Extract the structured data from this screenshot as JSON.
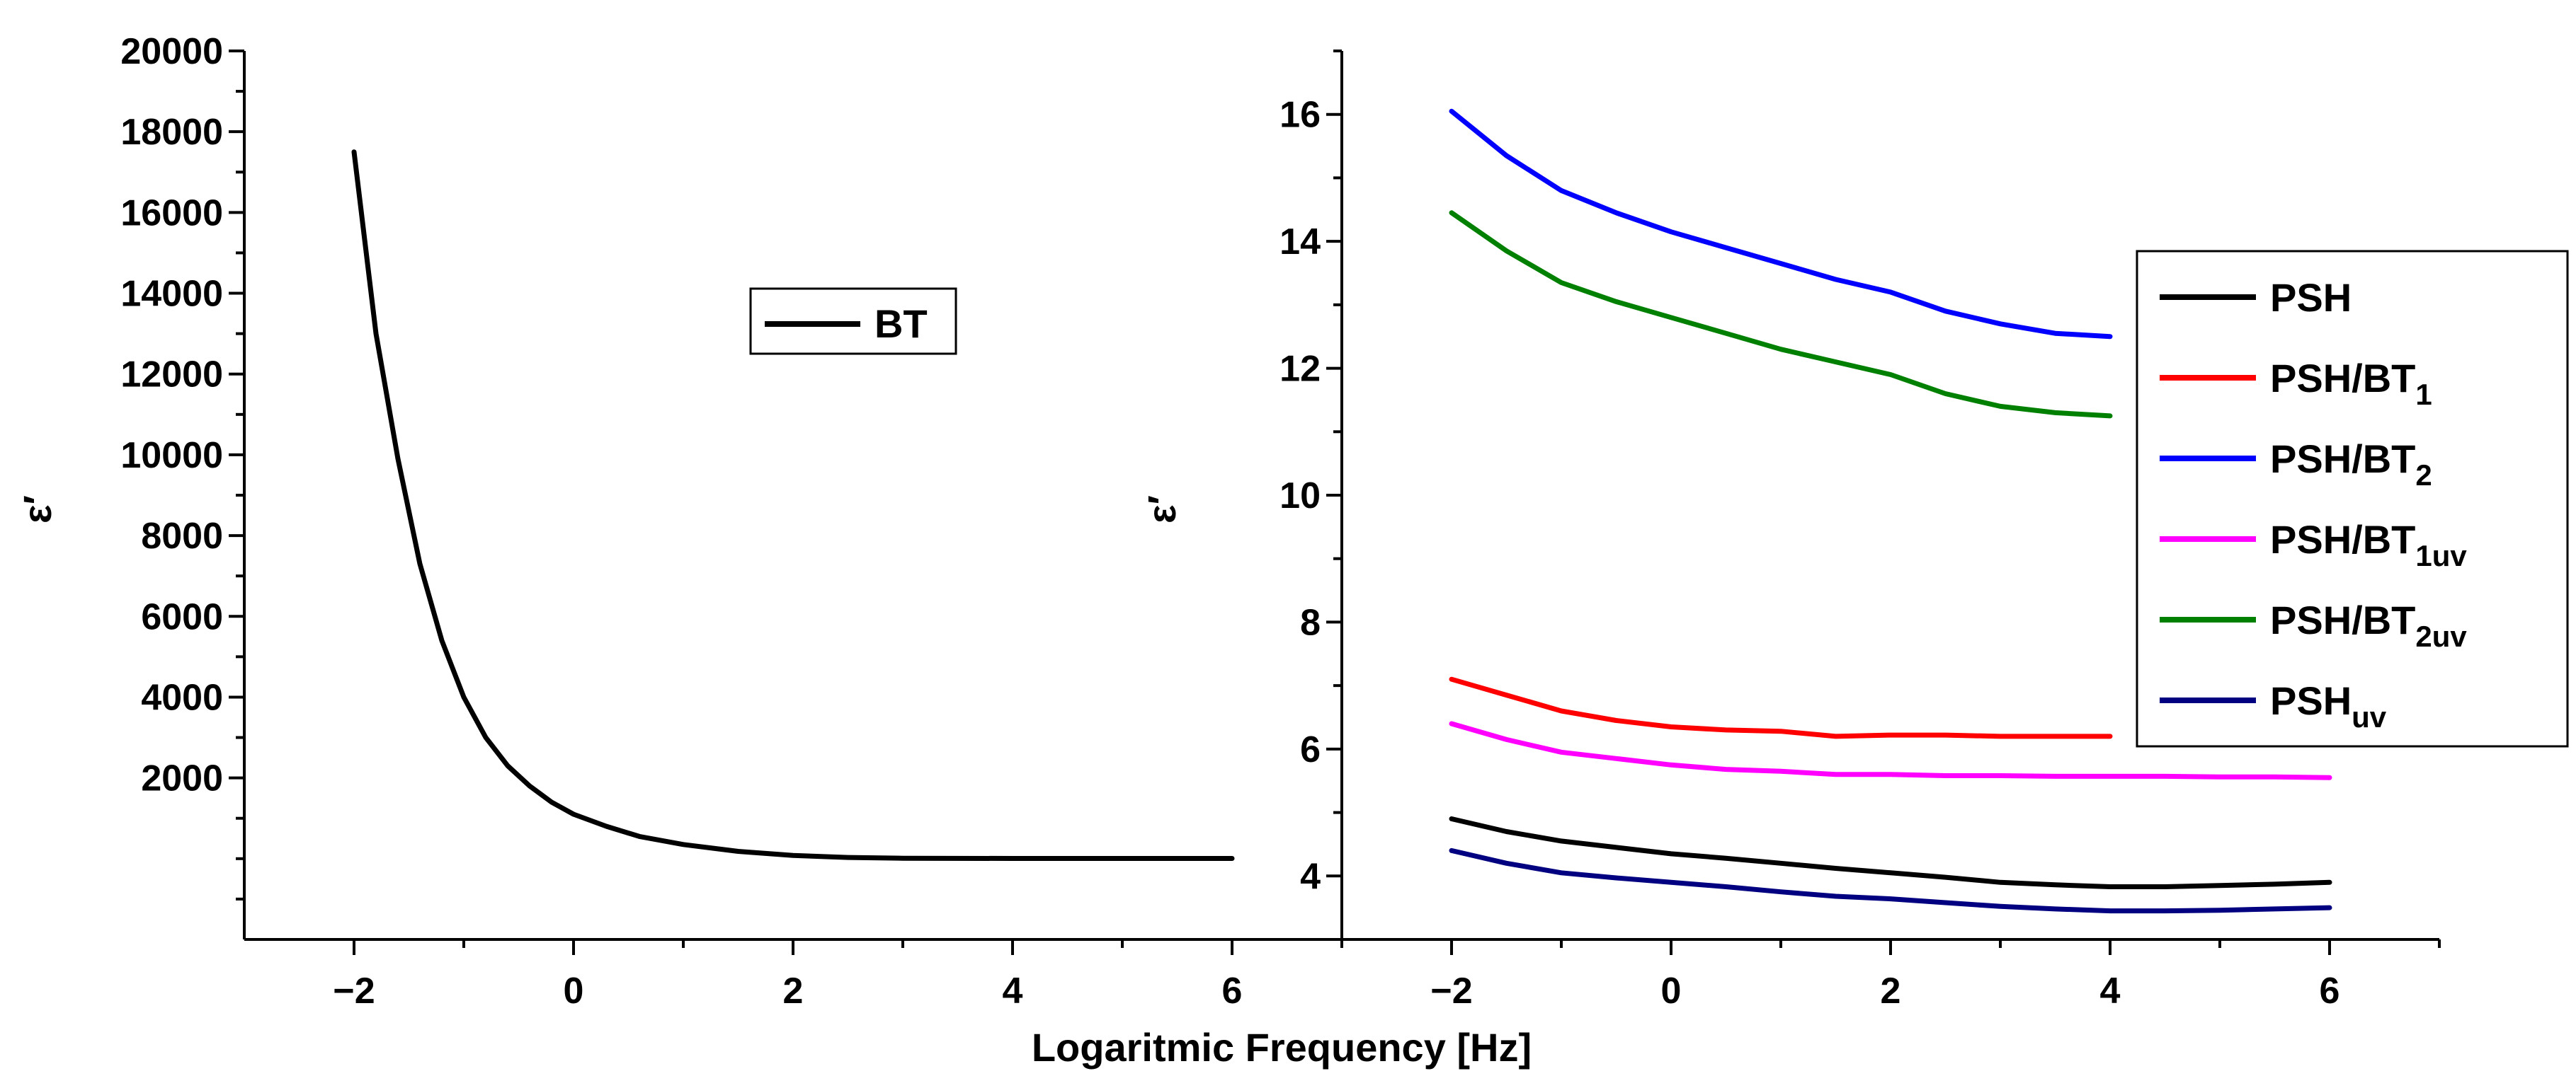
{
  "xlabel": "Logaritmic Frequency [Hz]",
  "chart_data": [
    {
      "type": "line",
      "title": "",
      "xlabel": "Logaritmic Frequency [Hz]",
      "ylabel": "ε′",
      "xlim": [
        -3,
        7
      ],
      "ylim": [
        -2000,
        20000
      ],
      "xticks": [
        -2,
        0,
        2,
        4,
        6
      ],
      "yticks": [
        2000,
        4000,
        6000,
        8000,
        10000,
        12000,
        14000,
        16000,
        18000,
        20000
      ],
      "legend": {
        "position": "center",
        "entries": [
          "BT"
        ]
      },
      "series": [
        {
          "name": "BT",
          "color": "#000000",
          "x": [
            -2,
            -1.8,
            -1.6,
            -1.4,
            -1.2,
            -1,
            -0.8,
            -0.6,
            -0.4,
            -0.2,
            0,
            0.3,
            0.6,
            1,
            1.5,
            2,
            2.5,
            3,
            4,
            5,
            6
          ],
          "y": [
            17500,
            13000,
            9900,
            7300,
            5400,
            4000,
            3000,
            2300,
            1800,
            1400,
            1100,
            800,
            550,
            350,
            180,
            80,
            30,
            10,
            5,
            5,
            5
          ]
        }
      ]
    },
    {
      "type": "line",
      "title": "",
      "xlabel": "Logaritmic Frequency [Hz]",
      "ylabel": "ε′",
      "xlim": [
        -3,
        7
      ],
      "ylim": [
        3,
        17
      ],
      "xticks": [
        -2,
        0,
        2,
        4,
        6
      ],
      "yticks": [
        4,
        6,
        8,
        10,
        12,
        14,
        16
      ],
      "legend": {
        "position": "right",
        "entries": [
          "PSH",
          "PSH/BT1",
          "PSH/BT2",
          "PSH/BT1uv",
          "PSH/BT2uv",
          "PSHuv"
        ]
      },
      "series": [
        {
          "name": "PSH",
          "main": "PSH",
          "sub": "",
          "color": "#000000",
          "x": [
            -2,
            -1.5,
            -1,
            -0.5,
            0,
            0.5,
            1,
            1.5,
            2,
            2.5,
            3,
            3.5,
            4,
            4.5,
            5,
            5.5,
            6
          ],
          "y": [
            4.9,
            4.7,
            4.55,
            4.45,
            4.35,
            4.28,
            4.2,
            4.12,
            4.05,
            3.98,
            3.9,
            3.86,
            3.83,
            3.83,
            3.85,
            3.87,
            3.9
          ]
        },
        {
          "name": "PSH/BT1",
          "main": "PSH/BT",
          "sub": "1",
          "color": "#ff0000",
          "x": [
            -2,
            -1.5,
            -1,
            -0.5,
            0,
            0.5,
            1,
            1.5,
            2,
            2.5,
            3,
            3.5,
            4
          ],
          "y": [
            7.1,
            6.85,
            6.6,
            6.45,
            6.35,
            6.3,
            6.28,
            6.2,
            6.22,
            6.22,
            6.2,
            6.2,
            6.2
          ]
        },
        {
          "name": "PSH/BT2",
          "main": "PSH/BT",
          "sub": "2",
          "color": "#0000ff",
          "x": [
            -2,
            -1.5,
            -1,
            -0.5,
            0,
            0.5,
            1,
            1.5,
            2,
            2.5,
            3,
            3.5,
            4
          ],
          "y": [
            16.05,
            15.35,
            14.8,
            14.45,
            14.15,
            13.9,
            13.65,
            13.4,
            13.2,
            12.9,
            12.7,
            12.55,
            12.5
          ]
        },
        {
          "name": "PSH/BT1uv",
          "main": "PSH/BT",
          "sub": "1uv",
          "color": "#ff00ff",
          "x": [
            -2,
            -1.5,
            -1,
            -0.5,
            0,
            0.5,
            1,
            1.5,
            2,
            2.5,
            3,
            3.5,
            4,
            4.5,
            5,
            5.5,
            6
          ],
          "y": [
            6.4,
            6.15,
            5.95,
            5.85,
            5.75,
            5.68,
            5.65,
            5.6,
            5.6,
            5.58,
            5.58,
            5.57,
            5.57,
            5.57,
            5.56,
            5.56,
            5.55
          ]
        },
        {
          "name": "PSH/BT2uv",
          "main": "PSH/BT",
          "sub": "2uv",
          "color": "#008000",
          "x": [
            -2,
            -1.5,
            -1,
            -0.5,
            0,
            0.5,
            1,
            1.5,
            2,
            2.5,
            3,
            3.5,
            4
          ],
          "y": [
            14.45,
            13.85,
            13.35,
            13.05,
            12.8,
            12.55,
            12.3,
            12.1,
            11.9,
            11.6,
            11.4,
            11.3,
            11.25
          ]
        },
        {
          "name": "PSHuv",
          "main": "PSH",
          "sub": "uv",
          "color": "#000080",
          "x": [
            -2,
            -1.5,
            -1,
            -0.5,
            0,
            0.5,
            1,
            1.5,
            2,
            2.5,
            3,
            3.5,
            4,
            4.5,
            5,
            5.5,
            6
          ],
          "y": [
            4.4,
            4.2,
            4.05,
            3.97,
            3.9,
            3.83,
            3.75,
            3.68,
            3.64,
            3.58,
            3.52,
            3.48,
            3.45,
            3.45,
            3.46,
            3.48,
            3.5
          ]
        }
      ]
    }
  ]
}
